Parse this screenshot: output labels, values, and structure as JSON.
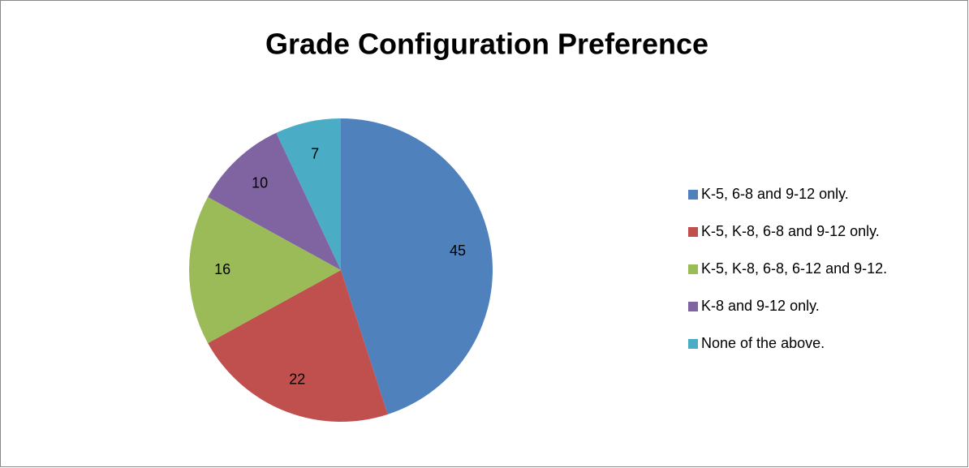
{
  "chart_data": {
    "type": "pie",
    "title": "Grade Configuration Preference",
    "categories": [
      "K-5, 6-8 and 9-12 only.",
      "K-5, K-8, 6-8 and 9-12 only.",
      "K-5, K-8, 6-8, 6-12 and 9-12.",
      "K-8 and 9-12 only.",
      "None of the above."
    ],
    "values": [
      45,
      22,
      16,
      10,
      7
    ],
    "colors": [
      "#4f81bd",
      "#c0504d",
      "#9bbb59",
      "#8064a2",
      "#4bacc6"
    ],
    "legend": "right"
  }
}
